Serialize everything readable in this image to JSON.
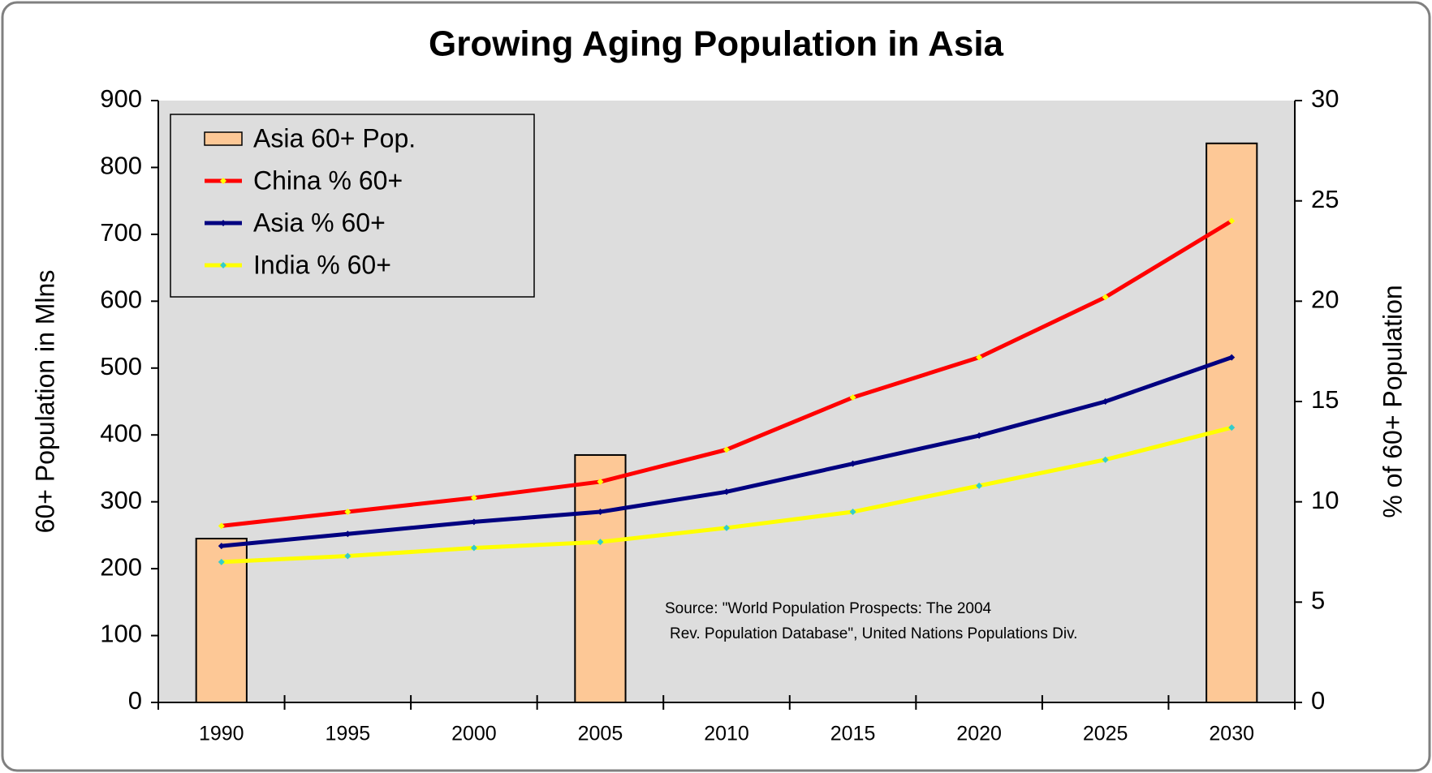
{
  "chart_data": {
    "type": "bar-line",
    "title": "Growing Aging Population in Asia",
    "ylabel": "60+ Population in Mlns",
    "y2label": "% of 60+ Population",
    "categories": [
      "1990",
      "1995",
      "2000",
      "2005",
      "2010",
      "2015",
      "2020",
      "2025",
      "2030"
    ],
    "series": [
      {
        "name": "Asia 60+ Pop.",
        "type": "bar",
        "axis": "y",
        "color": "#fdc896",
        "values": [
          245,
          null,
          null,
          370,
          null,
          null,
          null,
          null,
          836
        ]
      },
      {
        "name": "China % 60+",
        "type": "line",
        "axis": "y2",
        "color": "#ff0000",
        "marker_color": "#ffff00",
        "values": [
          8.8,
          9.5,
          10.2,
          11.0,
          12.6,
          15.2,
          17.2,
          20.2,
          24.0
        ]
      },
      {
        "name": "Asia % 60+",
        "type": "line",
        "axis": "y2",
        "color": "#000080",
        "marker_color": "#000080",
        "values": [
          7.8,
          8.4,
          9.0,
          9.5,
          10.5,
          11.9,
          13.3,
          15.0,
          17.2
        ]
      },
      {
        "name": "India % 60+",
        "type": "line",
        "axis": "y2",
        "color": "#ffff00",
        "marker_color": "#33cccc",
        "values": [
          7.0,
          7.3,
          7.7,
          8.0,
          8.7,
          9.5,
          10.8,
          12.1,
          13.7
        ]
      }
    ],
    "ylim": [
      0,
      900
    ],
    "yticks": [
      0,
      100,
      200,
      300,
      400,
      500,
      600,
      700,
      800,
      900
    ],
    "y2lim": [
      0,
      30
    ],
    "y2ticks": [
      0,
      5,
      10,
      15,
      20,
      25,
      30
    ],
    "legend": "upper left",
    "annotation": [
      "Source:  \"World Population Prospects: The 2004",
      "Rev. Population Database\", United Nations Populations Div."
    ]
  }
}
